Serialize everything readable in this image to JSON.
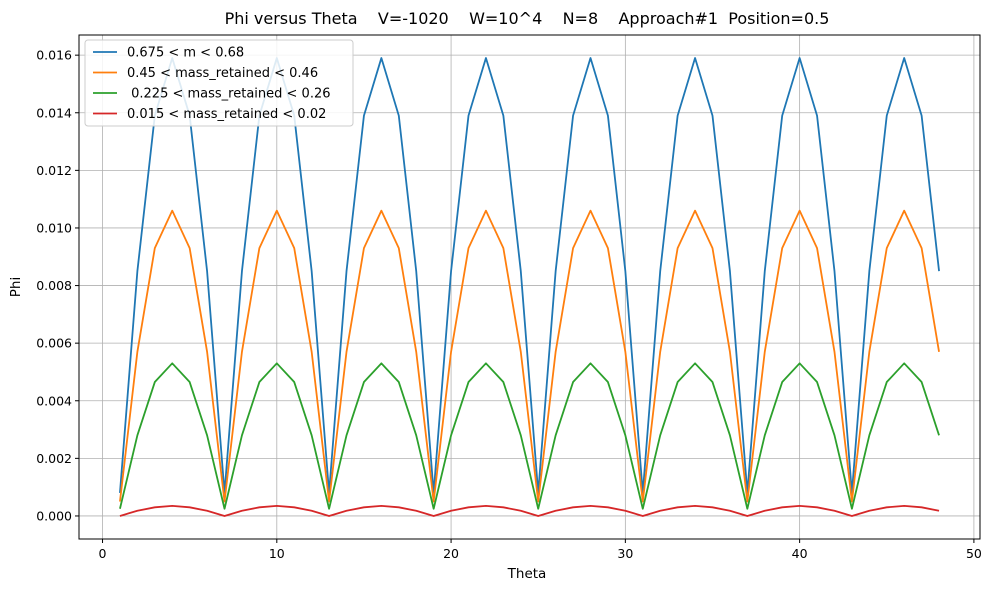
{
  "chart_data": {
    "type": "line",
    "title": "Phi versus Theta    V=-1020    W=10^4    N=8    Approach#1  Position=0.5",
    "xlabel": "Theta",
    "ylabel": "Phi",
    "xlim": [
      -1.35,
      50.35
    ],
    "ylim": [
      -0.0008,
      0.0167
    ],
    "xticks": [
      0,
      10,
      20,
      30,
      40,
      50
    ],
    "yticks": [
      0.0,
      0.002,
      0.004,
      0.006,
      0.008,
      0.01,
      0.012,
      0.014,
      0.016
    ],
    "xtick_labels": [
      "0",
      "10",
      "20",
      "30",
      "40",
      "50"
    ],
    "ytick_labels": [
      "0.000",
      "0.002",
      "0.004",
      "0.006",
      "0.008",
      "0.010",
      "0.012",
      "0.014",
      "0.016"
    ],
    "grid": true,
    "legend_position": "top-left",
    "x": [
      1,
      2,
      3,
      4,
      5,
      6,
      7,
      8,
      9,
      10,
      11,
      12,
      13,
      14,
      15,
      16,
      17,
      18,
      19,
      20,
      21,
      22,
      23,
      24,
      25,
      26,
      27,
      28,
      29,
      30,
      31,
      32,
      33,
      34,
      35,
      36,
      37,
      38,
      39,
      40,
      41,
      42,
      43,
      44,
      45,
      46,
      47,
      48
    ],
    "series": [
      {
        "name": "0.675 < m < 0.68",
        "color": "#1f77b4",
        "values": [
          0.0008,
          0.0085,
          0.0139,
          0.0159,
          0.0139,
          0.0085,
          0.0008,
          0.0085,
          0.0139,
          0.0159,
          0.0139,
          0.0085,
          0.0008,
          0.0085,
          0.0139,
          0.0159,
          0.0139,
          0.0085,
          0.0008,
          0.0085,
          0.0139,
          0.0159,
          0.0139,
          0.0085,
          0.0008,
          0.0085,
          0.0139,
          0.0159,
          0.0139,
          0.0085,
          0.0008,
          0.0085,
          0.0139,
          0.0159,
          0.0139,
          0.0085,
          0.0008,
          0.0085,
          0.0139,
          0.0159,
          0.0139,
          0.0085,
          0.0008,
          0.0085,
          0.0139,
          0.0159,
          0.0139,
          0.0085
        ]
      },
      {
        "name": "0.45 < mass_retained < 0.46",
        "color": "#ff7f0e",
        "values": [
          0.0005,
          0.0057,
          0.0093,
          0.0106,
          0.0093,
          0.0057,
          0.0005,
          0.0057,
          0.0093,
          0.0106,
          0.0093,
          0.0057,
          0.0005,
          0.0057,
          0.0093,
          0.0106,
          0.0093,
          0.0057,
          0.0005,
          0.0057,
          0.0093,
          0.0106,
          0.0093,
          0.0057,
          0.0005,
          0.0057,
          0.0093,
          0.0106,
          0.0093,
          0.0057,
          0.0005,
          0.0057,
          0.0093,
          0.0106,
          0.0093,
          0.0057,
          0.0005,
          0.0057,
          0.0093,
          0.0106,
          0.0093,
          0.0057,
          0.0005,
          0.0057,
          0.0093,
          0.0106,
          0.0093,
          0.0057
        ]
      },
      {
        "name": " 0.225 < mass_retained < 0.26",
        "color": "#2ca02c",
        "values": [
          0.00025,
          0.0028,
          0.00465,
          0.0053,
          0.00465,
          0.0028,
          0.00025,
          0.0028,
          0.00465,
          0.0053,
          0.00465,
          0.0028,
          0.00025,
          0.0028,
          0.00465,
          0.0053,
          0.00465,
          0.0028,
          0.00025,
          0.0028,
          0.00465,
          0.0053,
          0.00465,
          0.0028,
          0.00025,
          0.0028,
          0.00465,
          0.0053,
          0.00465,
          0.0028,
          0.00025,
          0.0028,
          0.00465,
          0.0053,
          0.00465,
          0.0028,
          0.00025,
          0.0028,
          0.00465,
          0.0053,
          0.00465,
          0.0028,
          0.00025,
          0.0028,
          0.00465,
          0.0053,
          0.00465,
          0.0028
        ]
      },
      {
        "name": "0.015 < mass_retained < 0.02",
        "color": "#d62728",
        "values": [
          0.0,
          0.00018,
          0.0003,
          0.00035,
          0.0003,
          0.00018,
          0.0,
          0.00018,
          0.0003,
          0.00035,
          0.0003,
          0.00018,
          0.0,
          0.00018,
          0.0003,
          0.00035,
          0.0003,
          0.00018,
          0.0,
          0.00018,
          0.0003,
          0.00035,
          0.0003,
          0.00018,
          0.0,
          0.00018,
          0.0003,
          0.00035,
          0.0003,
          0.00018,
          0.0,
          0.00018,
          0.0003,
          0.00035,
          0.0003,
          0.00018,
          0.0,
          0.00018,
          0.0003,
          0.00035,
          0.0003,
          0.00018,
          0.0,
          0.00018,
          0.0003,
          0.00035,
          0.0003,
          0.00018
        ]
      }
    ]
  }
}
